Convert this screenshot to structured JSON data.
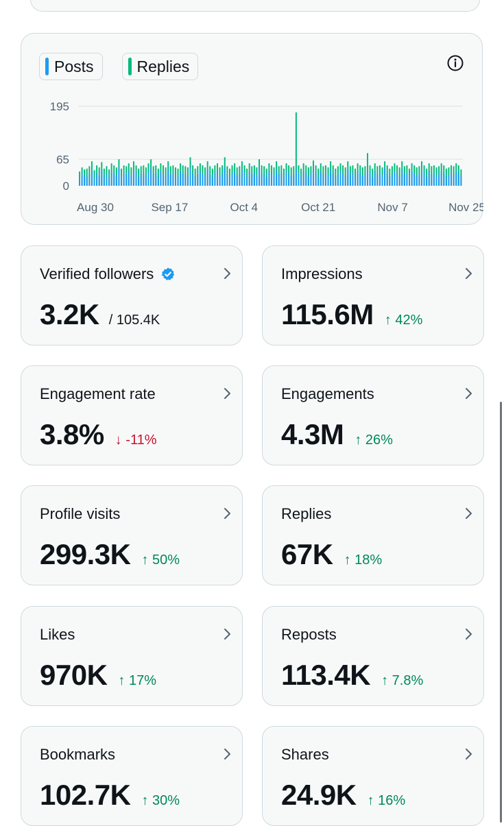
{
  "chart": {
    "legend": [
      {
        "label": "Posts",
        "color": "#1d9bf0"
      },
      {
        "label": "Replies",
        "color": "#00ba7c"
      }
    ],
    "info_icon": "info-icon"
  },
  "chart_data": {
    "type": "bar",
    "title": "",
    "xlabel": "",
    "ylabel": "",
    "ylim": [
      0,
      195
    ],
    "y_ticks": [
      0,
      65,
      195
    ],
    "x_tick_labels": [
      "Aug 30",
      "Sep 17",
      "Oct 4",
      "Oct 21",
      "Nov 7",
      "Nov 25"
    ],
    "series": [
      {
        "name": "Posts",
        "color": "#1d9bf0",
        "values": [
          20,
          30,
          25,
          22,
          28,
          35,
          18,
          30,
          25,
          40,
          22,
          28,
          20,
          35,
          30,
          25,
          45,
          22,
          30,
          28,
          35,
          25,
          40,
          30,
          22,
          28,
          30,
          25,
          35,
          45,
          28,
          30,
          22,
          35,
          30,
          25,
          40,
          28,
          30,
          25,
          22,
          35,
          30,
          28,
          25,
          45,
          30,
          22,
          28,
          35,
          30,
          25,
          40,
          28,
          22,
          30,
          35,
          25,
          30,
          45,
          28,
          22,
          30,
          35,
          25,
          28,
          40,
          30,
          22,
          35,
          28,
          30,
          25,
          45,
          30,
          28,
          22,
          35,
          30,
          25,
          40,
          28,
          30,
          22,
          35,
          30,
          25,
          28,
          40,
          30,
          22,
          35,
          30,
          25,
          28,
          45,
          30,
          22,
          35,
          28,
          30,
          25,
          40,
          30,
          22,
          28,
          35,
          30,
          25,
          40,
          28,
          30,
          22,
          35,
          30,
          25,
          28,
          40,
          30,
          22,
          35,
          28,
          30,
          25,
          45,
          30,
          22,
          28,
          35,
          30,
          25,
          40,
          28,
          30,
          22,
          35,
          30,
          25,
          28,
          40,
          30,
          22,
          35,
          28,
          30,
          25,
          28,
          35,
          30,
          22,
          25,
          30,
          28,
          35,
          30,
          25
        ]
      },
      {
        "name": "Replies",
        "color": "#00ba7c",
        "values": [
          35,
          45,
          40,
          42,
          48,
          60,
          38,
          50,
          45,
          58,
          42,
          48,
          40,
          55,
          50,
          45,
          65,
          42,
          50,
          48,
          55,
          45,
          60,
          50,
          42,
          48,
          50,
          45,
          55,
          65,
          48,
          50,
          42,
          55,
          50,
          45,
          60,
          48,
          50,
          45,
          42,
          55,
          50,
          48,
          45,
          70,
          50,
          42,
          48,
          55,
          50,
          45,
          60,
          48,
          42,
          50,
          55,
          45,
          50,
          70,
          48,
          42,
          50,
          55,
          45,
          48,
          60,
          50,
          42,
          55,
          48,
          50,
          45,
          65,
          50,
          48,
          42,
          55,
          50,
          45,
          60,
          48,
          50,
          42,
          55,
          50,
          45,
          48,
          180,
          50,
          42,
          55,
          50,
          45,
          48,
          62,
          50,
          42,
          55,
          48,
          50,
          45,
          60,
          50,
          42,
          48,
          55,
          50,
          45,
          60,
          48,
          50,
          42,
          55,
          50,
          45,
          48,
          80,
          50,
          42,
          55,
          48,
          50,
          45,
          60,
          50,
          42,
          48,
          55,
          50,
          45,
          60,
          48,
          50,
          42,
          55,
          50,
          45,
          48,
          60,
          50,
          42,
          55,
          48,
          50,
          45,
          48,
          55,
          50,
          42,
          45,
          50,
          48,
          55,
          50,
          40
        ]
      }
    ]
  },
  "stats": [
    {
      "label": "Verified followers",
      "value": "3.2K",
      "sub": "/ 105.4K",
      "delta": "",
      "direction": "",
      "verified": true
    },
    {
      "label": "Impressions",
      "value": "115.6M",
      "sub": "",
      "delta": "↑ 42%",
      "direction": "up"
    },
    {
      "label": "Engagement rate",
      "value": "3.8%",
      "sub": "",
      "delta": "↓ -11%",
      "direction": "down"
    },
    {
      "label": "Engagements",
      "value": "4.3M",
      "sub": "",
      "delta": "↑ 26%",
      "direction": "up"
    },
    {
      "label": "Profile visits",
      "value": "299.3K",
      "sub": "",
      "delta": "↑ 50%",
      "direction": "up"
    },
    {
      "label": "Replies",
      "value": "67K",
      "sub": "",
      "delta": "↑ 18%",
      "direction": "up"
    },
    {
      "label": "Likes",
      "value": "970K",
      "sub": "",
      "delta": "↑ 17%",
      "direction": "up"
    },
    {
      "label": "Reposts",
      "value": "113.4K",
      "sub": "",
      "delta": "↑ 7.8%",
      "direction": "up"
    },
    {
      "label": "Bookmarks",
      "value": "102.7K",
      "sub": "",
      "delta": "↑ 30%",
      "direction": "up"
    },
    {
      "label": "Shares",
      "value": "24.9K",
      "sub": "",
      "delta": "↑ 16%",
      "direction": "up"
    }
  ]
}
